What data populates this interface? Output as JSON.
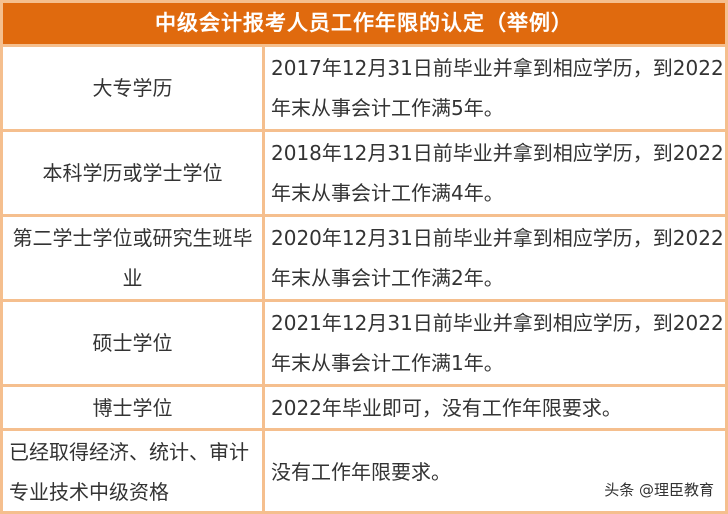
{
  "title": "中级会计报考人员工作年限的认定（举例）",
  "rows": [
    {
      "edu": "大专学历",
      "req": "2017年12月31日前毕业并拿到相应学历，到2022年末从事会计工作满5年。"
    },
    {
      "edu": "本科学历或学士学位",
      "req": "2018年12月31日前毕业并拿到相应学历，到2022年末从事会计工作满4年。"
    },
    {
      "edu": "第二学士学位或研究生班毕业",
      "req": "2020年12月31日前毕业并拿到相应学历，到2022年末从事会计工作满2年。"
    },
    {
      "edu": "硕士学位",
      "req": "2021年12月31日前毕业并拿到相应学历，到2022年末从事会计工作满1年。"
    },
    {
      "edu": "博士学位",
      "req": "2022年毕业即可，没有工作年限要求。"
    },
    {
      "edu": "已经取得经济、统计、审计专业技术中级资格",
      "req": "没有工作年限要求。"
    }
  ],
  "watermark": "头条 @理臣教育",
  "colors": {
    "header": "#e06a0e",
    "border": "#f5bf8e"
  }
}
